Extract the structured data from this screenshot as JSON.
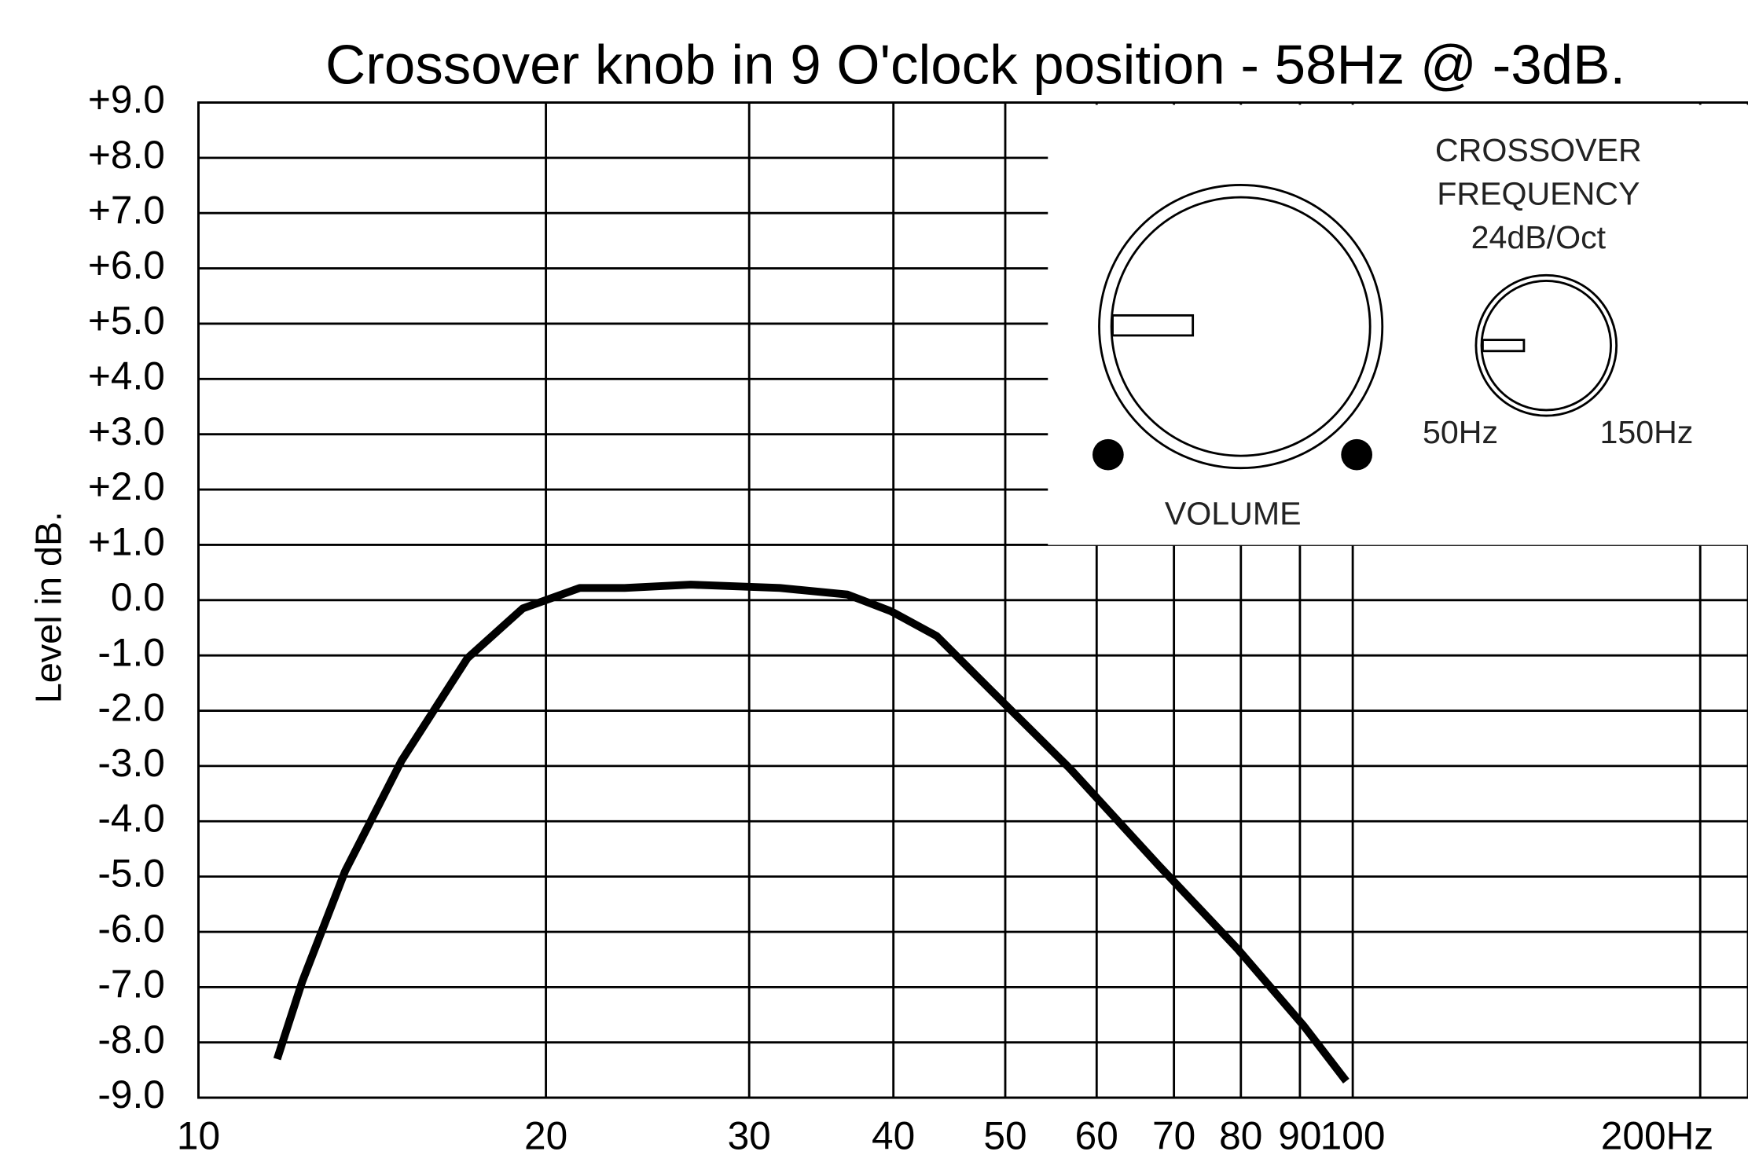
{
  "chart_data": {
    "type": "line",
    "title": "Crossover knob in 9 O'clock position - 58Hz @ -3dB.",
    "ylabel": "Level in dB.",
    "x": [
      11.7,
      12.3,
      13.4,
      15.0,
      17.1,
      19.1,
      21.4,
      23.4,
      26.7,
      31.9,
      36.5,
      39.8,
      43.6,
      48.7,
      56.9,
      67.9,
      79.4,
      90.7,
      98.7
    ],
    "values": [
      -8.3,
      -6.9,
      -4.9,
      -2.9,
      -1.05,
      -0.15,
      0.22,
      0.22,
      0.28,
      0.22,
      0.1,
      -0.2,
      -0.65,
      -1.65,
      -3.05,
      -4.8,
      -6.3,
      -7.7,
      -8.7
    ],
    "color": "#000000",
    "xscale": "log",
    "xlim": [
      10,
      220
    ],
    "xticks": [
      10,
      20,
      30,
      40,
      50,
      60,
      70,
      80,
      90,
      100,
      {
        "value": 200,
        "label": "200Hz"
      }
    ],
    "ylim": [
      -9,
      9
    ],
    "yticks": [
      {
        "value": 9,
        "label": "+9.0"
      },
      {
        "value": 8,
        "label": "+8.0"
      },
      {
        "value": 7,
        "label": "+7.0"
      },
      {
        "value": 6,
        "label": "+6.0"
      },
      {
        "value": 5,
        "label": "+5.0"
      },
      {
        "value": 4,
        "label": "+4.0"
      },
      {
        "value": 3,
        "label": "+3.0"
      },
      {
        "value": 2,
        "label": "+2.0"
      },
      {
        "value": 1,
        "label": "+1.0"
      },
      {
        "value": 0,
        "label": "0.0"
      },
      {
        "value": -1,
        "label": "-1.0"
      },
      {
        "value": -2,
        "label": "-2.0"
      },
      {
        "value": -3,
        "label": "-3.0"
      },
      {
        "value": -4,
        "label": "-4.0"
      },
      {
        "value": -5,
        "label": "-5.0"
      },
      {
        "value": -6,
        "label": "-6.0"
      },
      {
        "value": -7,
        "label": "-7.0"
      },
      {
        "value": -8,
        "label": "-8.0"
      },
      {
        "value": -9,
        "label": "-9.0"
      }
    ],
    "grid": true,
    "annotations": [
      "CROSSOVER",
      "FREQUENCY",
      "24dB/Oct",
      "50Hz",
      "150Hz",
      "VOLUME"
    ]
  }
}
